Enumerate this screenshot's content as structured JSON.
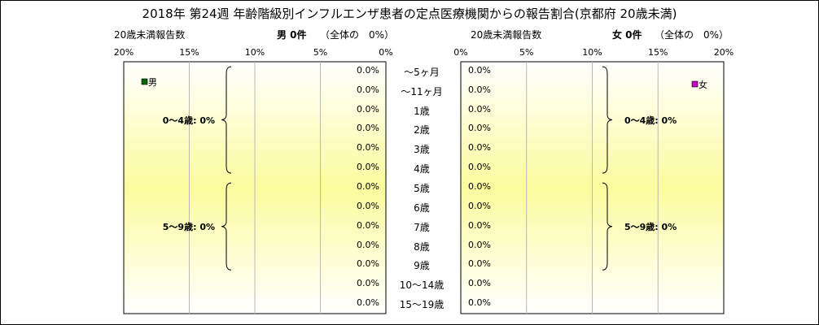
{
  "chart_data": {
    "type": "bar",
    "title": "2018年 第24週 年齢階級別インフルエンザ患者の定点医療機関からの報告割合(京都府 20歳未満)",
    "categories": [
      "～5ヶ月",
      "～11ヶ月",
      "1歳",
      "2歳",
      "3歳",
      "4歳",
      "5歳",
      "6歳",
      "7歳",
      "8歳",
      "9歳",
      "10～14歳",
      "15～19歳"
    ],
    "x_ticks": [
      "20%",
      "15%",
      "10%",
      "5%",
      "0%"
    ],
    "x_ticks_right": [
      "0%",
      "5%",
      "10%",
      "15%",
      "20%"
    ],
    "xlim": [
      0,
      20
    ],
    "panels": {
      "male": {
        "subtitle_left": "20歳未満報告数",
        "count_label": "男 0件",
        "share_label": "（全体の　0%）",
        "legend": "男",
        "legend_color": "#006400",
        "values": [
          0,
          0,
          0,
          0,
          0,
          0,
          0,
          0,
          0,
          0,
          0,
          0,
          0
        ],
        "value_labels": [
          "0.0%",
          "0.0%",
          "0.0%",
          "0.0%",
          "0.0%",
          "0.0%",
          "0.0%",
          "0.0%",
          "0.0%",
          "0.0%",
          "0.0%",
          "0.0%",
          "0.0%"
        ],
        "groups": [
          {
            "label": "0～4歳: 0%",
            "from": 0,
            "to": 5
          },
          {
            "label": "5～9歳: 0%",
            "from": 6,
            "to": 10
          }
        ]
      },
      "female": {
        "subtitle_left": "20歳未満報告数",
        "count_label": "女 0件",
        "share_label": "（全体の　0%）",
        "legend": "女",
        "legend_color": "#cc00cc",
        "values": [
          0,
          0,
          0,
          0,
          0,
          0,
          0,
          0,
          0,
          0,
          0,
          0,
          0
        ],
        "value_labels": [
          "0.0%",
          "0.0%",
          "0.0%",
          "0.0%",
          "0.0%",
          "0.0%",
          "0.0%",
          "0.0%",
          "0.0%",
          "0.0%",
          "0.0%",
          "0.0%",
          "0.0%"
        ],
        "groups": [
          {
            "label": "0～4歳: 0%",
            "from": 0,
            "to": 5
          },
          {
            "label": "5～9歳: 0%",
            "from": 6,
            "to": 10
          }
        ]
      }
    }
  }
}
